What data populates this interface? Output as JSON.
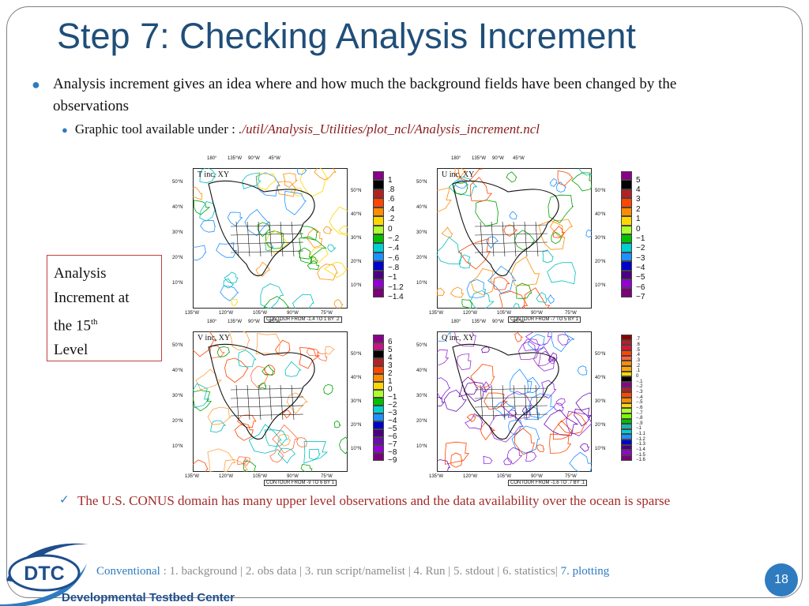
{
  "slide": {
    "title": "Step 7: Checking Analysis Increment",
    "bullet1": "Analysis increment gives an idea where and how much the background fields have been changed by the observations",
    "bullet2_prefix": "Graphic tool available under : ",
    "bullet2_path": "./util/Analysis_Utilities/plot_ncl/Analysis_increment.ncl",
    "callout": {
      "line1": "Analysis",
      "line2": "Increment at",
      "line3": "the 15",
      "sup": "th",
      "line4": "Level"
    },
    "note": "The U.S. CONUS domain has many upper level observations and the data availability over the ocean is sparse",
    "page_number": "18"
  },
  "footer": {
    "conventional": "Conventional",
    "sep": " : ",
    "items": "1. background | 2. obs data | 3. run script/namelist | 4. Run | 5. stdout | 6. statistics|",
    "current": " 7. plotting"
  },
  "logo": {
    "text": "DTC",
    "subtitle": "Developmental Testbed Center"
  },
  "colors": {
    "title": "#1f4e79",
    "bullet": "#2f7bc0",
    "path": "#8b1a1a",
    "note": "#a52a2a",
    "footer_gray": "#8c8c8c",
    "page_badge": "#2f7bc0"
  },
  "maps": {
    "top_lon_labels": [
      "180°",
      "135°W",
      "90°W",
      "45°W"
    ],
    "bottom_lon_labels": [
      "135°W",
      "120°W",
      "105°W",
      "90°W",
      "75°W"
    ],
    "left_lat_labels": [
      "50°N",
      "40°N",
      "30°N",
      "20°N",
      "10°N"
    ],
    "right_lat_labels": [
      "50°N",
      "40°N",
      "30°N",
      "20°N",
      "10°N"
    ],
    "panels": [
      {
        "title": "T inc, XY",
        "contour": "CONTOUR FROM -1.4 TO 1 BY .2",
        "colorbar": [
          "1",
          ".8",
          ".6",
          ".4",
          ".2",
          "0",
          "-.2",
          "-.4",
          "-.6",
          "-.8",
          "-1",
          "-1.2",
          "-1.4"
        ],
        "swatches": [
          "#8b008b",
          "#000000",
          "#b22222",
          "#ff4500",
          "#ff8c00",
          "#ffd700",
          "#adff2f",
          "#00c000",
          "#00ced1",
          "#1e90ff",
          "#0000cd",
          "#4b0082",
          "#9400d3",
          "#7a007a"
        ]
      },
      {
        "title": "U inc, XY",
        "contour": "CONTOUR FROM -7 TO 5 BY 1",
        "colorbar": [
          "5",
          "4",
          "3",
          "2",
          "1",
          "0",
          "-1",
          "-2",
          "-3",
          "-4",
          "-5",
          "-6",
          "-7"
        ],
        "swatches": [
          "#8b008b",
          "#000000",
          "#b22222",
          "#ff4500",
          "#ff8c00",
          "#ffd700",
          "#adff2f",
          "#00c000",
          "#00ced1",
          "#1e90ff",
          "#0000cd",
          "#4b0082",
          "#9400d3",
          "#7a007a"
        ]
      },
      {
        "title": "V inc, XY",
        "contour": "CONTOUR FROM -9 TO 6 BY 1",
        "colorbar": [
          "6",
          "5",
          "4",
          "3",
          "2",
          "1",
          "0",
          "-1",
          "-2",
          "-3",
          "-4",
          "-5",
          "-6",
          "-7",
          "-8",
          "-9"
        ],
        "swatches": [
          "#8b008b",
          "#c71585",
          "#000000",
          "#b22222",
          "#ff4500",
          "#ff8c00",
          "#ffd700",
          "#adff2f",
          "#00c000",
          "#00ced1",
          "#1e90ff",
          "#0000cd",
          "#4b0082",
          "#6a0dad",
          "#9400d3",
          "#7a007a"
        ]
      },
      {
        "title": "Q inc, XY",
        "contour": "CONTOUR FROM -1.6 TO .7 BY .1",
        "colorbar": [
          ".7",
          ".6",
          ".5",
          ".4",
          ".3",
          ".2",
          ".1",
          "0",
          "-.1",
          "-.2",
          "-.3",
          "-.4",
          "-.5",
          "-.6",
          "-.7",
          "-.8",
          "-.9",
          "-1",
          "-1.1",
          "-1.2",
          "-1.3",
          "-1.4",
          "-1.5",
          "-1.6"
        ],
        "swatches": [
          "#8b0000",
          "#b22222",
          "#dc143c",
          "#ff4500",
          "#ff6347",
          "#ff8c00",
          "#ffa500",
          "#ffd700",
          "#000000",
          "#8b008b",
          "#b22222",
          "#ff4500",
          "#ff8c00",
          "#ffd700",
          "#adff2f",
          "#7cfc00",
          "#00c000",
          "#20b2aa",
          "#00ced1",
          "#1e90ff",
          "#0000cd",
          "#4b0082",
          "#9400d3",
          "#7a007a"
        ]
      }
    ]
  }
}
